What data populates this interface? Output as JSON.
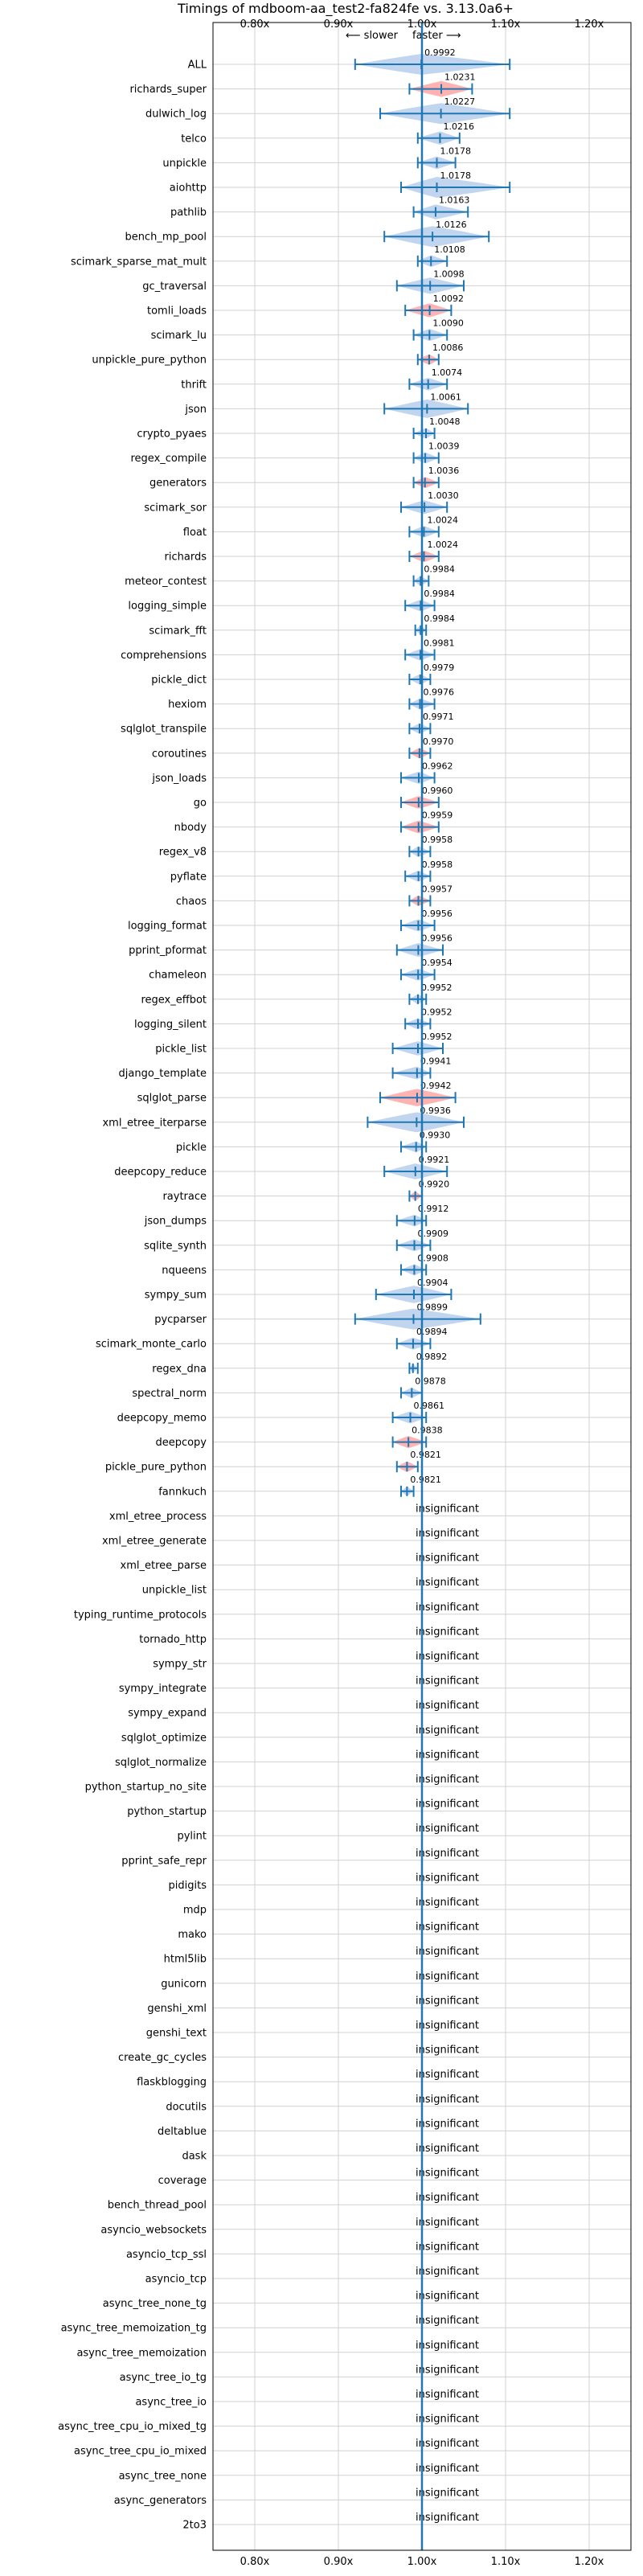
{
  "chart_data": {
    "type": "violin",
    "title": "Timings of mdboom-aa_test2-fa824fe vs. 3.13.0a6+",
    "annotation_slower": "⟵ slower",
    "annotation_faster": "faster ⟶",
    "x_ticks": [
      "0.80x",
      "0.90x",
      "1.00x",
      "1.10x",
      "1.20x"
    ],
    "x_tick_values": [
      0.8,
      0.9,
      1.0,
      1.1,
      1.2
    ],
    "xlim": [
      0.75,
      1.25
    ],
    "insignificant_label": "insignificant",
    "colors": {
      "faster": "#1f77b4",
      "faster_fill": "#aec7e8",
      "slower_fill": "#ff9896",
      "line": "#1f77b4",
      "grid": "#d0d0d0"
    },
    "benchmarks": [
      {
        "name": "ALL",
        "value": 0.9992,
        "label": "0.9992",
        "low": 0.92,
        "high": 1.105,
        "color": "blue"
      },
      {
        "name": "richards_super",
        "value": 1.0231,
        "label": "1.0231",
        "low": 0.985,
        "high": 1.06,
        "color": "red"
      },
      {
        "name": "dulwich_log",
        "value": 1.0227,
        "label": "1.0227",
        "low": 0.95,
        "high": 1.105,
        "color": "blue"
      },
      {
        "name": "telco",
        "value": 1.0216,
        "label": "1.0216",
        "low": 0.995,
        "high": 1.045,
        "color": "blue"
      },
      {
        "name": "unpickle",
        "value": 1.0178,
        "label": "1.0178",
        "low": 0.995,
        "high": 1.04,
        "color": "blue"
      },
      {
        "name": "aiohttp",
        "value": 1.0178,
        "label": "1.0178",
        "low": 0.975,
        "high": 1.105,
        "color": "blue"
      },
      {
        "name": "pathlib",
        "value": 1.0163,
        "label": "1.0163",
        "low": 0.99,
        "high": 1.055,
        "color": "blue"
      },
      {
        "name": "bench_mp_pool",
        "value": 1.0126,
        "label": "1.0126",
        "low": 0.955,
        "high": 1.08,
        "color": "blue"
      },
      {
        "name": "scimark_sparse_mat_mult",
        "value": 1.0108,
        "label": "1.0108",
        "low": 0.995,
        "high": 1.03,
        "color": "blue"
      },
      {
        "name": "gc_traversal",
        "value": 1.0098,
        "label": "1.0098",
        "low": 0.97,
        "high": 1.05,
        "color": "blue"
      },
      {
        "name": "tomli_loads",
        "value": 1.0092,
        "label": "1.0092",
        "low": 0.98,
        "high": 1.035,
        "color": "red"
      },
      {
        "name": "scimark_lu",
        "value": 1.009,
        "label": "1.0090",
        "low": 0.99,
        "high": 1.03,
        "color": "blue"
      },
      {
        "name": "unpickle_pure_python",
        "value": 1.0086,
        "label": "1.0086",
        "low": 0.995,
        "high": 1.02,
        "color": "red"
      },
      {
        "name": "thrift",
        "value": 1.0074,
        "label": "1.0074",
        "low": 0.985,
        "high": 1.03,
        "color": "blue"
      },
      {
        "name": "json",
        "value": 1.0061,
        "label": "1.0061",
        "low": 0.955,
        "high": 1.055,
        "color": "blue"
      },
      {
        "name": "crypto_pyaes",
        "value": 1.0048,
        "label": "1.0048",
        "low": 0.99,
        "high": 1.015,
        "color": "blue"
      },
      {
        "name": "regex_compile",
        "value": 1.0039,
        "label": "1.0039",
        "low": 0.99,
        "high": 1.02,
        "color": "blue"
      },
      {
        "name": "generators",
        "value": 1.0036,
        "label": "1.0036",
        "low": 0.99,
        "high": 1.02,
        "color": "red"
      },
      {
        "name": "scimark_sor",
        "value": 1.003,
        "label": "1.0030",
        "low": 0.975,
        "high": 1.03,
        "color": "blue"
      },
      {
        "name": "float",
        "value": 1.0024,
        "label": "1.0024",
        "low": 0.985,
        "high": 1.02,
        "color": "blue"
      },
      {
        "name": "richards",
        "value": 1.0024,
        "label": "1.0024",
        "low": 0.985,
        "high": 1.02,
        "color": "red"
      },
      {
        "name": "meteor_contest",
        "value": 0.9984,
        "label": "0.9984",
        "low": 0.99,
        "high": 1.008,
        "color": "blue"
      },
      {
        "name": "logging_simple",
        "value": 0.9984,
        "label": "0.9984",
        "low": 0.98,
        "high": 1.015,
        "color": "blue"
      },
      {
        "name": "scimark_fft",
        "value": 0.9984,
        "label": "0.9984",
        "low": 0.992,
        "high": 1.005,
        "color": "blue"
      },
      {
        "name": "comprehensions",
        "value": 0.9981,
        "label": "0.9981",
        "low": 0.98,
        "high": 1.015,
        "color": "blue"
      },
      {
        "name": "pickle_dict",
        "value": 0.9979,
        "label": "0.9979",
        "low": 0.985,
        "high": 1.01,
        "color": "blue"
      },
      {
        "name": "hexiom",
        "value": 0.9976,
        "label": "0.9976",
        "low": 0.985,
        "high": 1.015,
        "color": "blue"
      },
      {
        "name": "sqlglot_transpile",
        "value": 0.9971,
        "label": "0.9971",
        "low": 0.985,
        "high": 1.01,
        "color": "blue"
      },
      {
        "name": "coroutines",
        "value": 0.997,
        "label": "0.9970",
        "low": 0.985,
        "high": 1.01,
        "color": "red"
      },
      {
        "name": "json_loads",
        "value": 0.9962,
        "label": "0.9962",
        "low": 0.975,
        "high": 1.015,
        "color": "blue"
      },
      {
        "name": "go",
        "value": 0.996,
        "label": "0.9960",
        "low": 0.975,
        "high": 1.02,
        "color": "red"
      },
      {
        "name": "nbody",
        "value": 0.9959,
        "label": "0.9959",
        "low": 0.975,
        "high": 1.02,
        "color": "red"
      },
      {
        "name": "regex_v8",
        "value": 0.9958,
        "label": "0.9958",
        "low": 0.985,
        "high": 1.01,
        "color": "blue"
      },
      {
        "name": "pyflate",
        "value": 0.9958,
        "label": "0.9958",
        "low": 0.98,
        "high": 1.01,
        "color": "blue"
      },
      {
        "name": "chaos",
        "value": 0.9957,
        "label": "0.9957",
        "low": 0.985,
        "high": 1.01,
        "color": "red"
      },
      {
        "name": "logging_format",
        "value": 0.9956,
        "label": "0.9956",
        "low": 0.975,
        "high": 1.015,
        "color": "blue"
      },
      {
        "name": "pprint_pformat",
        "value": 0.9956,
        "label": "0.9956",
        "low": 0.97,
        "high": 1.025,
        "color": "blue"
      },
      {
        "name": "chameleon",
        "value": 0.9954,
        "label": "0.9954",
        "low": 0.975,
        "high": 1.015,
        "color": "blue"
      },
      {
        "name": "regex_effbot",
        "value": 0.9952,
        "label": "0.9952",
        "low": 0.985,
        "high": 1.005,
        "color": "blue"
      },
      {
        "name": "logging_silent",
        "value": 0.9952,
        "label": "0.9952",
        "low": 0.98,
        "high": 1.01,
        "color": "blue"
      },
      {
        "name": "pickle_list",
        "value": 0.9952,
        "label": "0.9952",
        "low": 0.965,
        "high": 1.025,
        "color": "blue"
      },
      {
        "name": "django_template",
        "value": 0.9941,
        "label": "0.9941",
        "low": 0.965,
        "high": 1.01,
        "color": "blue"
      },
      {
        "name": "sqlglot_parse",
        "value": 0.9942,
        "label": "0.9942",
        "low": 0.95,
        "high": 1.04,
        "color": "red"
      },
      {
        "name": "xml_etree_iterparse",
        "value": 0.9936,
        "label": "0.9936",
        "low": 0.935,
        "high": 1.05,
        "color": "blue"
      },
      {
        "name": "pickle",
        "value": 0.993,
        "label": "0.9930",
        "low": 0.975,
        "high": 1.005,
        "color": "blue"
      },
      {
        "name": "deepcopy_reduce",
        "value": 0.9921,
        "label": "0.9921",
        "low": 0.955,
        "high": 1.03,
        "color": "blue"
      },
      {
        "name": "raytrace",
        "value": 0.992,
        "label": "0.9920",
        "low": 0.985,
        "high": 1.0,
        "color": "red"
      },
      {
        "name": "json_dumps",
        "value": 0.9912,
        "label": "0.9912",
        "low": 0.97,
        "high": 1.005,
        "color": "blue"
      },
      {
        "name": "sqlite_synth",
        "value": 0.9909,
        "label": "0.9909",
        "low": 0.97,
        "high": 1.01,
        "color": "blue"
      },
      {
        "name": "nqueens",
        "value": 0.9908,
        "label": "0.9908",
        "low": 0.975,
        "high": 1.005,
        "color": "blue"
      },
      {
        "name": "sympy_sum",
        "value": 0.9904,
        "label": "0.9904",
        "low": 0.945,
        "high": 1.035,
        "color": "blue"
      },
      {
        "name": "pycparser",
        "value": 0.9899,
        "label": "0.9899",
        "low": 0.92,
        "high": 1.07,
        "color": "blue"
      },
      {
        "name": "scimark_monte_carlo",
        "value": 0.9894,
        "label": "0.9894",
        "low": 0.97,
        "high": 1.01,
        "color": "blue"
      },
      {
        "name": "regex_dna",
        "value": 0.9892,
        "label": "0.9892",
        "low": 0.985,
        "high": 0.995,
        "color": "blue"
      },
      {
        "name": "spectral_norm",
        "value": 0.9878,
        "label": "0.9878",
        "low": 0.975,
        "high": 1.0,
        "color": "blue"
      },
      {
        "name": "deepcopy_memo",
        "value": 0.9861,
        "label": "0.9861",
        "low": 0.965,
        "high": 1.005,
        "color": "blue"
      },
      {
        "name": "deepcopy",
        "value": 0.9838,
        "label": "0.9838",
        "low": 0.965,
        "high": 1.005,
        "color": "red"
      },
      {
        "name": "pickle_pure_python",
        "value": 0.9821,
        "label": "0.9821",
        "low": 0.97,
        "high": 0.995,
        "color": "red"
      },
      {
        "name": "fannkuch",
        "value": 0.9821,
        "label": "0.9821",
        "low": 0.975,
        "high": 0.99,
        "color": "blue"
      },
      {
        "name": "xml_etree_process",
        "value": null,
        "label": "insignificant"
      },
      {
        "name": "xml_etree_generate",
        "value": null,
        "label": "insignificant"
      },
      {
        "name": "xml_etree_parse",
        "value": null,
        "label": "insignificant"
      },
      {
        "name": "unpickle_list",
        "value": null,
        "label": "insignificant"
      },
      {
        "name": "typing_runtime_protocols",
        "value": null,
        "label": "insignificant"
      },
      {
        "name": "tornado_http",
        "value": null,
        "label": "insignificant"
      },
      {
        "name": "sympy_str",
        "value": null,
        "label": "insignificant"
      },
      {
        "name": "sympy_integrate",
        "value": null,
        "label": "insignificant"
      },
      {
        "name": "sympy_expand",
        "value": null,
        "label": "insignificant"
      },
      {
        "name": "sqlglot_optimize",
        "value": null,
        "label": "insignificant"
      },
      {
        "name": "sqlglot_normalize",
        "value": null,
        "label": "insignificant"
      },
      {
        "name": "python_startup_no_site",
        "value": null,
        "label": "insignificant"
      },
      {
        "name": "python_startup",
        "value": null,
        "label": "insignificant"
      },
      {
        "name": "pylint",
        "value": null,
        "label": "insignificant"
      },
      {
        "name": "pprint_safe_repr",
        "value": null,
        "label": "insignificant"
      },
      {
        "name": "pidigits",
        "value": null,
        "label": "insignificant"
      },
      {
        "name": "mdp",
        "value": null,
        "label": "insignificant"
      },
      {
        "name": "mako",
        "value": null,
        "label": "insignificant"
      },
      {
        "name": "html5lib",
        "value": null,
        "label": "insignificant"
      },
      {
        "name": "gunicorn",
        "value": null,
        "label": "insignificant"
      },
      {
        "name": "genshi_xml",
        "value": null,
        "label": "insignificant"
      },
      {
        "name": "genshi_text",
        "value": null,
        "label": "insignificant"
      },
      {
        "name": "create_gc_cycles",
        "value": null,
        "label": "insignificant"
      },
      {
        "name": "flaskblogging",
        "value": null,
        "label": "insignificant"
      },
      {
        "name": "docutils",
        "value": null,
        "label": "insignificant"
      },
      {
        "name": "deltablue",
        "value": null,
        "label": "insignificant"
      },
      {
        "name": "dask",
        "value": null,
        "label": "insignificant"
      },
      {
        "name": "coverage",
        "value": null,
        "label": "insignificant"
      },
      {
        "name": "bench_thread_pool",
        "value": null,
        "label": "insignificant"
      },
      {
        "name": "asyncio_websockets",
        "value": null,
        "label": "insignificant"
      },
      {
        "name": "asyncio_tcp_ssl",
        "value": null,
        "label": "insignificant"
      },
      {
        "name": "asyncio_tcp",
        "value": null,
        "label": "insignificant"
      },
      {
        "name": "async_tree_none_tg",
        "value": null,
        "label": "insignificant"
      },
      {
        "name": "async_tree_memoization_tg",
        "value": null,
        "label": "insignificant"
      },
      {
        "name": "async_tree_memoization",
        "value": null,
        "label": "insignificant"
      },
      {
        "name": "async_tree_io_tg",
        "value": null,
        "label": "insignificant"
      },
      {
        "name": "async_tree_io",
        "value": null,
        "label": "insignificant"
      },
      {
        "name": "async_tree_cpu_io_mixed_tg",
        "value": null,
        "label": "insignificant"
      },
      {
        "name": "async_tree_cpu_io_mixed",
        "value": null,
        "label": "insignificant"
      },
      {
        "name": "async_tree_none",
        "value": null,
        "label": "insignificant"
      },
      {
        "name": "async_generators",
        "value": null,
        "label": "insignificant"
      },
      {
        "name": "2to3",
        "value": null,
        "label": "insignificant"
      }
    ]
  }
}
